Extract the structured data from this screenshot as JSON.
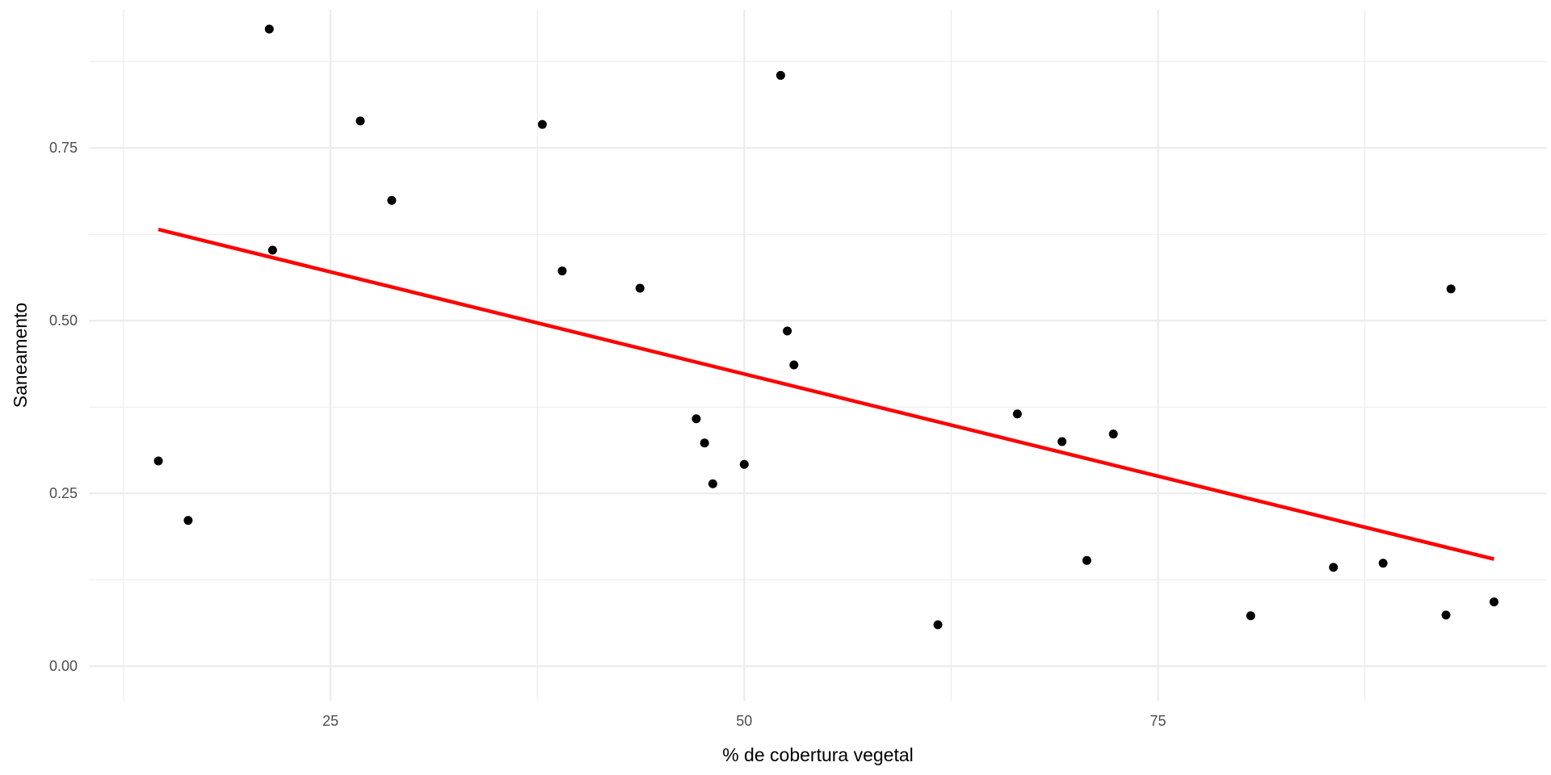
{
  "chart_data": {
    "type": "scatter",
    "title": "",
    "xlabel": "% de cobertura vegetal",
    "ylabel": "Saneamento",
    "xlim": [
      10.4,
      98.5
    ],
    "ylim": [
      -0.05,
      0.95
    ],
    "x_ticks": [
      25,
      50,
      75
    ],
    "x_tick_labels": [
      "25",
      "50",
      "75"
    ],
    "x_minor_ticks": [
      12.5,
      37.5,
      62.5,
      87.5
    ],
    "y_ticks": [
      0,
      0.25,
      0.5,
      0.75
    ],
    "y_tick_labels": [
      "0.00",
      "0.25",
      "0.50",
      "0.75"
    ],
    "y_minor_ticks": [
      0.125,
      0.375,
      0.625,
      0.875
    ],
    "grid": true,
    "legend": "none",
    "point_color": "#000000",
    "points": [
      {
        "x": 14.6,
        "y": 0.297
      },
      {
        "x": 16.4,
        "y": 0.211
      },
      {
        "x": 21.3,
        "y": 0.922
      },
      {
        "x": 21.5,
        "y": 0.602
      },
      {
        "x": 26.8,
        "y": 0.789
      },
      {
        "x": 28.7,
        "y": 0.674
      },
      {
        "x": 37.8,
        "y": 0.784
      },
      {
        "x": 39.0,
        "y": 0.572
      },
      {
        "x": 43.7,
        "y": 0.547
      },
      {
        "x": 47.1,
        "y": 0.358
      },
      {
        "x": 47.6,
        "y": 0.323
      },
      {
        "x": 48.1,
        "y": 0.264
      },
      {
        "x": 50.0,
        "y": 0.292
      },
      {
        "x": 52.2,
        "y": 0.855
      },
      {
        "x": 52.6,
        "y": 0.485
      },
      {
        "x": 53.0,
        "y": 0.436
      },
      {
        "x": 61.7,
        "y": 0.06
      },
      {
        "x": 66.5,
        "y": 0.365
      },
      {
        "x": 69.2,
        "y": 0.325
      },
      {
        "x": 70.7,
        "y": 0.153
      },
      {
        "x": 72.3,
        "y": 0.336
      },
      {
        "x": 80.6,
        "y": 0.073
      },
      {
        "x": 85.6,
        "y": 0.143
      },
      {
        "x": 88.6,
        "y": 0.149
      },
      {
        "x": 92.4,
        "y": 0.074
      },
      {
        "x": 92.7,
        "y": 0.546
      },
      {
        "x": 95.3,
        "y": 0.093
      }
    ],
    "trend_line": {
      "color": "#ff0000",
      "x": [
        14.6,
        95.3
      ],
      "y": [
        0.632,
        0.155
      ]
    }
  }
}
